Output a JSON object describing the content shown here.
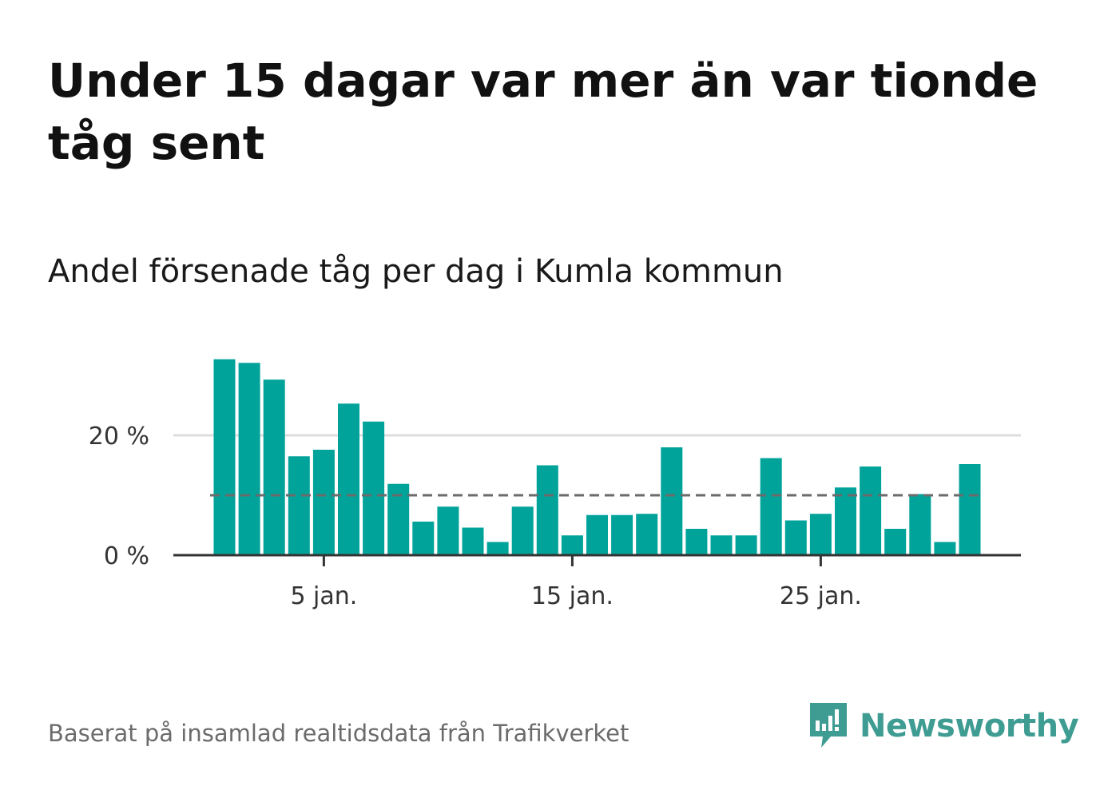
{
  "title": "Under 15 dagar var mer än var tionde tåg sent",
  "subtitle": "Andel försenade tåg per dag i Kumla kommun",
  "source": "Baserat på insamlad realtidsdata från Trafikverket",
  "brand": {
    "name": "Newsworthy",
    "icon": "newsworthy-logo-icon",
    "color": "#3e9c92"
  },
  "colors": {
    "bar": "#00a39a",
    "reference": "#6b6b6b",
    "grid": "#dddddd",
    "axis": "#333333"
  },
  "chart_data": {
    "type": "bar",
    "x": [
      1,
      2,
      3,
      4,
      5,
      6,
      7,
      8,
      9,
      10,
      11,
      12,
      13,
      14,
      15,
      16,
      17,
      18,
      19,
      20,
      21,
      22,
      23,
      24,
      25,
      26,
      27,
      28,
      29,
      30,
      31
    ],
    "values": [
      32.7,
      32.1,
      29.3,
      16.5,
      17.6,
      25.3,
      22.3,
      11.9,
      5.6,
      8.1,
      4.6,
      2.2,
      8.1,
      15.0,
      3.3,
      6.7,
      6.7,
      6.9,
      18.0,
      4.4,
      3.3,
      3.3,
      16.2,
      5.8,
      6.9,
      11.3,
      14.8,
      4.4,
      10.2,
      2.2,
      15.2
    ],
    "reference_line": 10,
    "yticks": [
      {
        "value": 0,
        "label": "0 %"
      },
      {
        "value": 20,
        "label": "20 %"
      }
    ],
    "xticks": [
      {
        "value": 5,
        "label": "5 jan."
      },
      {
        "value": 15,
        "label": "15 jan."
      },
      {
        "value": 25,
        "label": "25 jan."
      }
    ],
    "ylim": [
      0,
      32.7
    ],
    "grid": true,
    "legend": "none"
  }
}
